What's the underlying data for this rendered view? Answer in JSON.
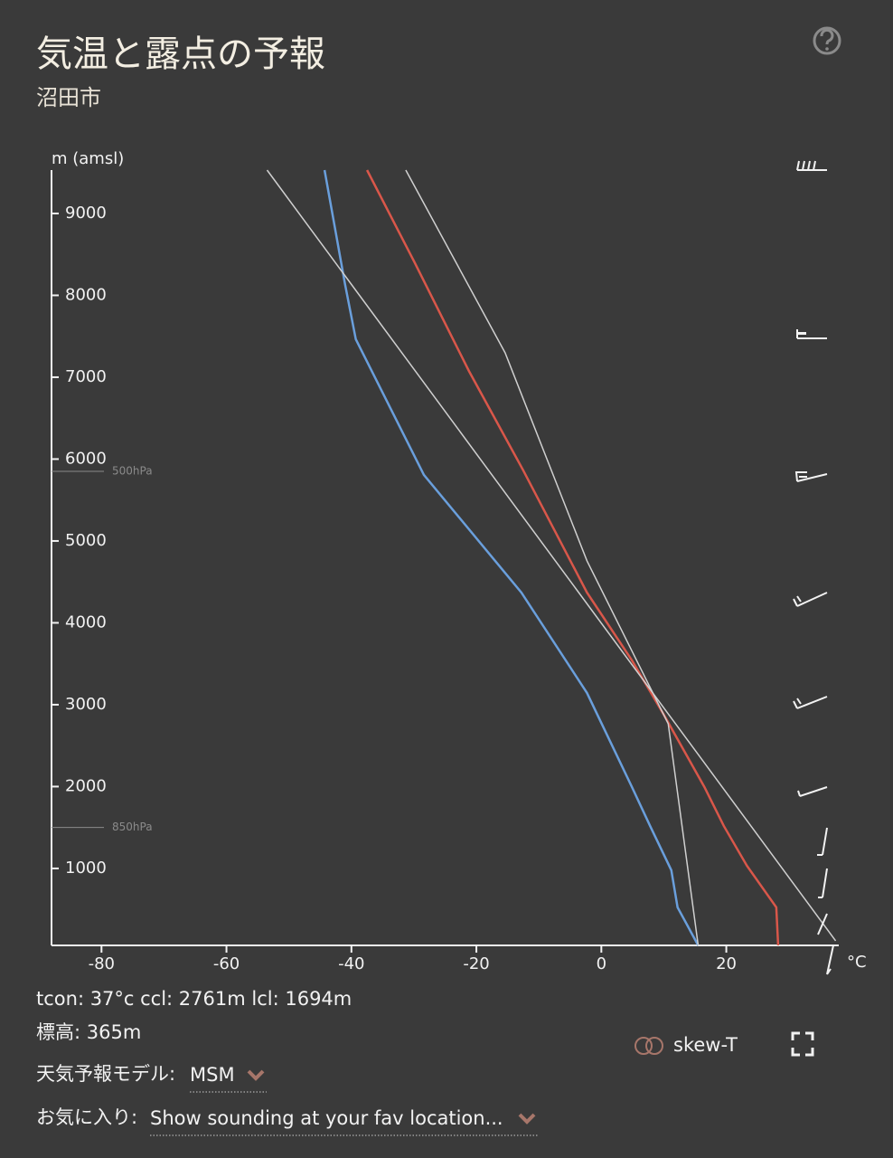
{
  "header": {
    "title": "気温と露点の予報",
    "subtitle": "沼田市"
  },
  "chart_data": {
    "type": "line",
    "y_label": "m (amsl)",
    "x_label": "°C",
    "xlim": [
      -88,
      38
    ],
    "xticks": [
      -80,
      -60,
      -40,
      -20,
      0,
      20
    ],
    "ylim": [
      60,
      9530
    ],
    "yticks": [
      1000,
      2000,
      3000,
      4000,
      5000,
      6000,
      7000,
      8000,
      9000
    ],
    "series": [
      {
        "color": "#d9574a",
        "heights": [
          60,
          525,
          1033,
          1519,
          1994,
          2878,
          3541,
          4370,
          5862,
          7077,
          8403,
          9530
        ],
        "values": [
          28.3,
          28.0,
          23.3,
          19.6,
          16.5,
          10.0,
          4.9,
          -2.3,
          -12.5,
          -21.2,
          -29.9,
          -37.5
        ]
      },
      {
        "color": "#6a9fdc",
        "heights": [
          60,
          525,
          978,
          1519,
          1994,
          3144,
          4370,
          5807,
          7464,
          8127,
          9530
        ],
        "values": [
          15.5,
          12.2,
          11.2,
          7.8,
          4.9,
          -2.3,
          -12.8,
          -28.4,
          -39.3,
          -41.0,
          -44.3
        ]
      },
      {
        "color": "#d0d0d0",
        "heights": [
          116,
          9530
        ],
        "values": [
          37.5,
          -53.5
        ]
      },
      {
        "color": "#d0d0d0",
        "heights": [
          60,
          2768,
          4757,
          7298,
          9530
        ],
        "values": [
          15.5,
          10.7,
          -2.3,
          -15.4,
          -31.3
        ]
      }
    ],
    "pressure_levels": [
      {
        "label": "500hPa",
        "height": 5850
      },
      {
        "label": "850hPa",
        "height": 1500
      }
    ]
  },
  "footer": {
    "stats": "tcon: 37°c ccl: 2761m lcl: 1694m",
    "elevation": "標高: 365m",
    "model_label": "天気予報モデル:",
    "model": "MSM",
    "fav_label": "お気に入り:",
    "fav": "Show sounding at your fav location...",
    "toggle": "skew-T"
  }
}
